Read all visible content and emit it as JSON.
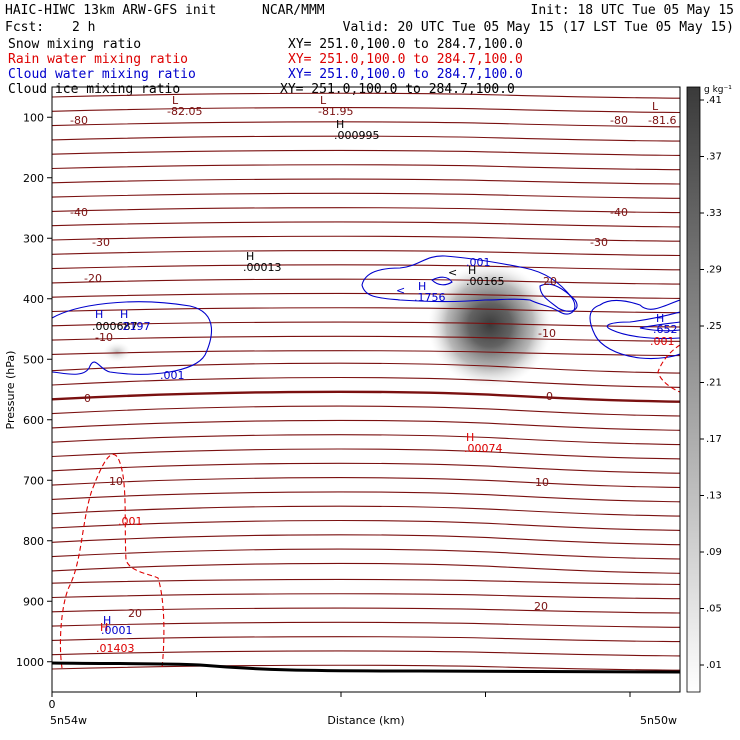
{
  "header": {
    "model": "HAIC-HIWC 13km ARW-GFS init",
    "org": "NCAR/MMM",
    "init": "Init: 18 UTC Tue 05 May 15",
    "fcst_label": "Fcst:",
    "fcst_value": "2 h",
    "valid": "Valid: 20 UTC Tue 05 May 15 (17 LST Tue 05 May 15)"
  },
  "fields": [
    {
      "label": "Snow mixing ratio",
      "xy": "XY= 251.0,100.0 to 284.7,100.0",
      "color": "#000000"
    },
    {
      "label": "Rain water mixing ratio",
      "xy": "XY= 251.0,100.0 to 284.7,100.0",
      "color": "#dd0000"
    },
    {
      "label": "Cloud water mixing ratio",
      "xy": "XY= 251.0,100.0 to 284.7,100.0",
      "color": "#0000cc"
    },
    {
      "label": "Cloud ice mixing ratio",
      "xy": "XY= 251.0,100.0 to 284.7,100.0",
      "color": "#000000"
    }
  ],
  "chart_data": {
    "type": "contour",
    "ylabel": "Pressure (hPa)",
    "xlabel": "Distance (km)",
    "x_left_label": "5n54w",
    "x_right_label": "5n50w",
    "y_ticks": [
      100,
      200,
      300,
      400,
      500,
      600,
      700,
      800,
      900,
      1000
    ],
    "x_ticks": [
      "0",
      "",
      "",
      "",
      ""
    ],
    "ylim": [
      50,
      1050
    ],
    "colorbar": {
      "unit": "g kg⁻¹",
      "levels": [
        ".01",
        ".05",
        ".09",
        ".13",
        ".17",
        ".21",
        ".25",
        ".29",
        ".33",
        ".37",
        ".41"
      ]
    },
    "temperature_labels": [
      "-80",
      "-82.05",
      "-81.95",
      "-81.6",
      "-40",
      "-30",
      "-20",
      "-10",
      "0",
      "10",
      "20"
    ],
    "extrema_labels": [
      {
        "kind": "L",
        "value": "-82.05"
      },
      {
        "kind": "L",
        "value": "-81.95"
      },
      {
        "kind": "L",
        "value": "-81.6"
      },
      {
        "kind": "H",
        "value": ".000995"
      },
      {
        "kind": "H",
        "value": ".00013"
      },
      {
        "kind": "H",
        "value": ".00165"
      },
      {
        "kind": "H",
        "value": ".00074"
      },
      {
        "kind": "H",
        "value": ".1756"
      },
      {
        "kind": "H",
        "value": ".01403"
      },
      {
        "kind": "H",
        "value": ".0001"
      },
      {
        "kind": "H",
        "value": ".652"
      },
      {
        "kind": "H",
        "value": ".000687"
      },
      {
        "kind": "H",
        "value": ".2197"
      }
    ],
    "cloud_labels": [
      ".001",
      ".001",
      ".001"
    ],
    "rain_labels": [
      ".001",
      ".001"
    ]
  }
}
